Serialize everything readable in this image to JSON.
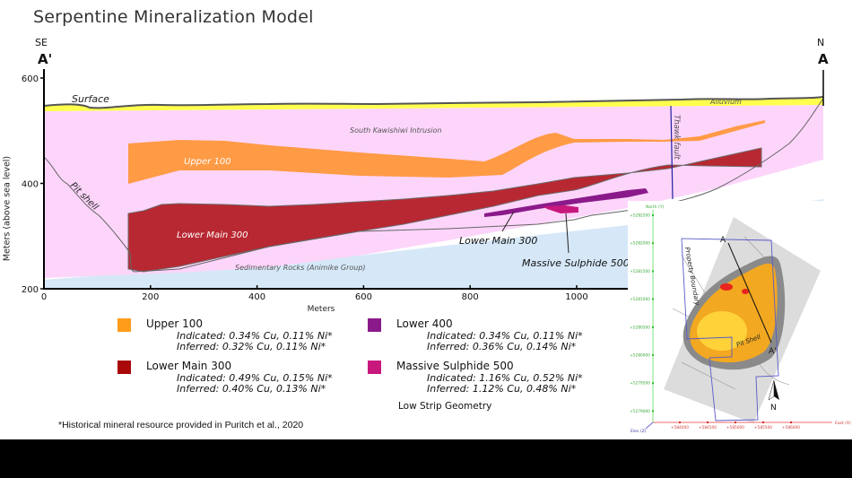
{
  "title": "Serpentine Mineralization Model",
  "section": {
    "left_direction": "SE",
    "left_label": "A'",
    "right_direction": "N",
    "right_label": "A"
  },
  "chart_data": {
    "type": "diagram",
    "title": "Serpentine Mineralization Model",
    "xlabel": "Meters",
    "ylabel": "Meters (above sea level)",
    "xlim": [
      0,
      1140
    ],
    "ylim": [
      200,
      620
    ],
    "x_ticks": [
      "0",
      "200",
      "400",
      "600",
      "800",
      "1000"
    ],
    "y_ticks": [
      "600",
      "400",
      "200"
    ],
    "x_tick_values": [
      0,
      200,
      400,
      600,
      800,
      1000
    ],
    "y_tick_values": [
      600,
      400,
      200
    ],
    "units": [
      "Alluvium",
      "South Kawishiwi Intrusion",
      "Sedimentary Rocks (Animike Group)"
    ],
    "annotations": [
      "Surface",
      "Alluvium",
      "South Kawishiwi Intrusion",
      "Pit shell",
      "Thawk fault",
      "Upper 100",
      "Lower Main 300",
      "Lower Main 300",
      "Massive Sulphide 500",
      "Sedimentary Rocks (Animike Group)"
    ],
    "zones": [
      {
        "name": "Upper 100",
        "color": "#FF9A45"
      },
      {
        "name": "Lower Main 300",
        "color": "#B82832"
      },
      {
        "name": "Lower 400",
        "color": "#8A1A8A"
      },
      {
        "name": "Massive Sulphide 500",
        "color": "#C8187E"
      }
    ]
  },
  "colors": {
    "alluvium": "#FFFF4D",
    "intrusion": "#FDD5FB",
    "sedimentary": "#D6E8F8",
    "upper100": "#FF9A45",
    "lowermain300": "#B82832",
    "lower400": "#8A1A8A",
    "massive500": "#C8187E",
    "fault": "#2020A0"
  },
  "legend": [
    {
      "name": "Upper 100",
      "color": "#FF9D1A",
      "indicated": "Indicated: 0.34% Cu, 0.11% Ni*",
      "inferred": "Inferred: 0.32% Cu, 0.11% Ni*"
    },
    {
      "name": "Lower Main 300",
      "color": "#A80808",
      "indicated": "Indicated: 0.49% Cu, 0.15% Ni*",
      "inferred": "Inferred: 0.40% Cu, 0.13% Ni*"
    },
    {
      "name": "Lower 400",
      "color": "#8A1A8A",
      "indicated": "Indicated: 0.34% Cu, 0.11% Ni*",
      "inferred": "Inferred: 0.36% Cu, 0.14% Ni*"
    },
    {
      "name": "Massive Sulphide 500",
      "color": "#C8187E",
      "indicated": "Indicated: 1.16% Cu, 0.52% Ni*",
      "inferred": "Inferred: 1.12% Cu, 0.48% Ni*"
    }
  ],
  "geometry_caption": "Low Strip Geometry",
  "footnote": "*Historical mineral resource provided in Puritch et al., 2020",
  "inset": {
    "north_axis_label": "North (Y)",
    "east_axis_label": "East (X)",
    "elev_axis_label": "Elev (Z)",
    "north_ticks": [
      "+5282500",
      "+5282000",
      "+5281500",
      "+5281000",
      "+5280500",
      "+5280000",
      "+5279500",
      "+5279000"
    ],
    "east_ticks": [
      "+584000",
      "+584500",
      "+585000",
      "+585500",
      "+586000"
    ],
    "labels": {
      "property_boundary": "Property Boundary",
      "pit_shell": "Pit Shell",
      "section_a": "A",
      "section_a_prime": "A'",
      "north_arrow": "N"
    }
  }
}
